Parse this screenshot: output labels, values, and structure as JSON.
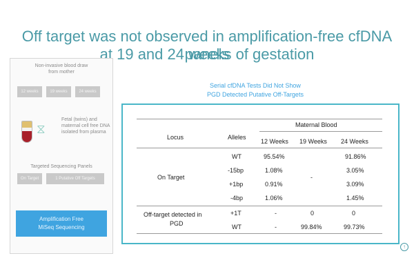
{
  "slide": {
    "title_line1": "Off target was not observed in amplification-free cfDNA panels",
    "title_line2": "at 19 and 24 weeks of gestation"
  },
  "left_panel": {
    "blood_draw_text": "Non-invasive blood draw from mother",
    "week_boxes": [
      "12 weeks",
      "19 weeks",
      "24 weeks"
    ],
    "dna_text": "Fetal (twins) and maternal cell free DNA isolated from plasma",
    "sequencing_label": "Targeted Sequencing Panels",
    "panel_boxes": [
      "On Target",
      "1 Putative Off Targets"
    ],
    "amplification_label": "Amplification Free MiSeq Sequencing",
    "tube_colors": {
      "plasma": "#e0c070",
      "blood": "#a8202a"
    },
    "icons": [
      "blood-tube-icon",
      "dna-helix-icon"
    ]
  },
  "subtitle": {
    "line1": "Serial cfDNA Tests Did Not Show",
    "line2": "PGD Detected Putative Off-Targets"
  },
  "table": {
    "header": {
      "locus": "Locus",
      "alleles": "Alleles",
      "group": "Maternal Blood",
      "weeks": [
        "12 Weeks",
        "19 Weeks",
        "24 Weeks"
      ]
    },
    "on_target_label": "On Target",
    "on_target_rows": [
      {
        "allele": "WT",
        "w12": "95.54%",
        "w24": "91.86%"
      },
      {
        "allele": "-15bp",
        "w12": "1.08%",
        "w24": "3.05%"
      },
      {
        "allele": "+1bp",
        "w12": "0.91%",
        "w24": "3.09%"
      },
      {
        "allele": "-4bp",
        "w12": "1.06%",
        "w24": "1.45%"
      }
    ],
    "on_target_w19": "-",
    "off_target_label_line1": "Off-target detected in",
    "off_target_label_line2": "PGD",
    "off_target_rows": [
      {
        "allele": "+1T",
        "w12": "-",
        "w19": "0",
        "w24": "0"
      },
      {
        "allele": "WT",
        "w12": "-",
        "w19": "99.84%",
        "w24": "99.73%"
      }
    ]
  },
  "colors": {
    "title": "#4a9aa6",
    "accent_blue": "#3fa4e0",
    "table_border": "#49b6c8"
  },
  "corner_icon": "arrow-up-icon"
}
